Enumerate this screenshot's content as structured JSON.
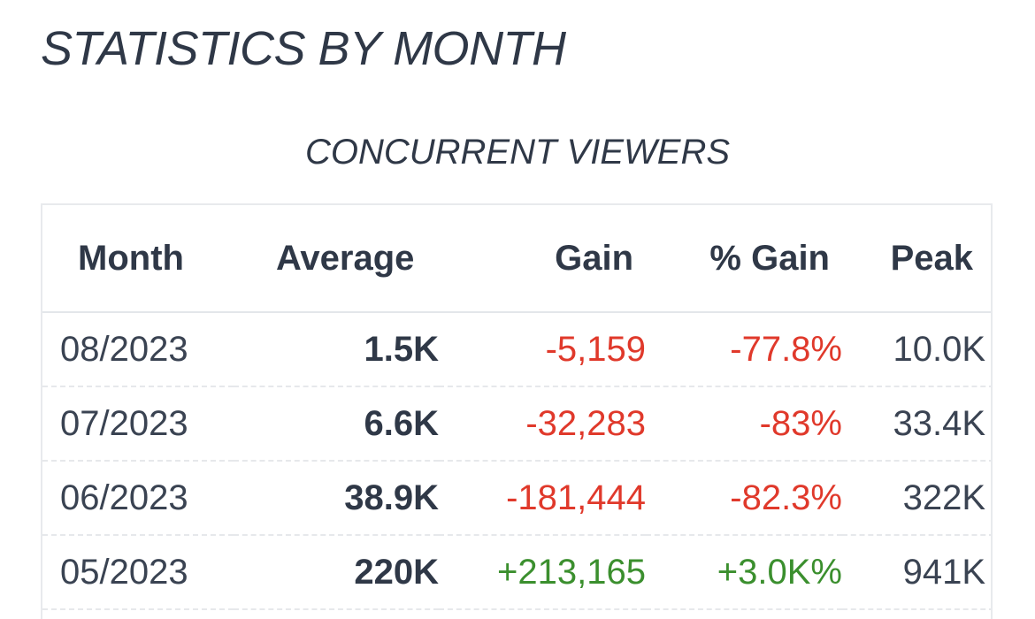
{
  "section": {
    "title": "STATISTICS BY MONTH"
  },
  "table": {
    "caption": "CONCURRENT VIEWERS",
    "headers": {
      "month": "Month",
      "average": "Average",
      "gain": "Gain",
      "pct_gain": "% Gain",
      "peak": "Peak"
    },
    "rows": [
      {
        "month": "08/2023",
        "average": "1.5K",
        "gain": "-5,159",
        "pct_gain": "-77.8%",
        "peak": "10.0K",
        "trend": "negative"
      },
      {
        "month": "07/2023",
        "average": "6.6K",
        "gain": "-32,283",
        "pct_gain": "-83%",
        "peak": "33.4K",
        "trend": "negative"
      },
      {
        "month": "06/2023",
        "average": "38.9K",
        "gain": "-181,444",
        "pct_gain": "-82.3%",
        "peak": "322K",
        "trend": "negative"
      },
      {
        "month": "05/2023",
        "average": "220K",
        "gain": "+213,165",
        "pct_gain": "+3.0K%",
        "peak": "941K",
        "trend": "positive"
      }
    ]
  },
  "colors": {
    "text": "#2f3847",
    "negative": "#e0392b",
    "positive": "#3b8f2e",
    "border": "#e8eaed"
  }
}
